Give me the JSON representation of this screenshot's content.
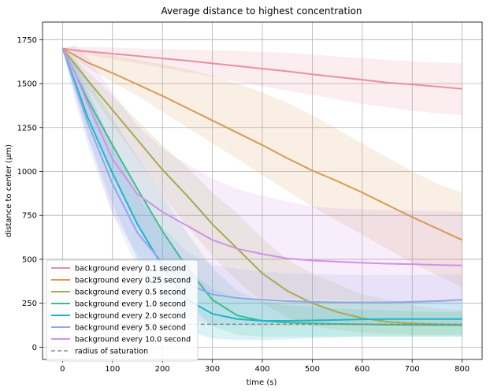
{
  "chart_data": {
    "type": "line",
    "title": "Average distance to highest concentration",
    "xlabel": "time (s)",
    "ylabel": "distance to center (μm)",
    "xlim": [
      -40,
      840
    ],
    "ylim": [
      -70,
      1850
    ],
    "x_ticks": [
      0,
      100,
      200,
      300,
      400,
      500,
      600,
      700,
      800
    ],
    "y_ticks": [
      0,
      250,
      500,
      750,
      1000,
      1250,
      1500,
      1750
    ],
    "grid": true,
    "legend_position": "lower-left",
    "x": [
      0,
      25,
      50,
      100,
      150,
      200,
      250,
      300,
      350,
      400,
      450,
      500,
      550,
      600,
      650,
      700,
      750,
      800
    ],
    "series": [
      {
        "name": "background every 0.1 second",
        "color": "#e88fa4",
        "values": [
          1700,
          1690,
          1683,
          1670,
          1657,
          1643,
          1630,
          1615,
          1600,
          1585,
          1570,
          1553,
          1537,
          1522,
          1505,
          1495,
          1483,
          1470
        ],
        "lower": [
          1700,
          1680,
          1665,
          1640,
          1615,
          1590,
          1565,
          1540,
          1510,
          1485,
          1460,
          1435,
          1410,
          1385,
          1365,
          1345,
          1330,
          1320
        ],
        "upper": [
          1700,
          1710,
          1710,
          1705,
          1700,
          1697,
          1693,
          1690,
          1685,
          1680,
          1675,
          1665,
          1655,
          1645,
          1635,
          1625,
          1620,
          1615
        ]
      },
      {
        "name": "background every 0.25 second",
        "color": "#d79a55",
        "values": [
          1700,
          1660,
          1620,
          1560,
          1495,
          1430,
          1360,
          1290,
          1220,
          1150,
          1075,
          1005,
          945,
          880,
          810,
          740,
          675,
          610
        ],
        "lower": [
          1700,
          1640,
          1590,
          1510,
          1430,
          1340,
          1250,
          1160,
          1070,
          980,
          890,
          800,
          720,
          640,
          560,
          480,
          410,
          340
        ],
        "upper": [
          1700,
          1690,
          1680,
          1660,
          1635,
          1610,
          1580,
          1545,
          1500,
          1450,
          1390,
          1320,
          1240,
          1160,
          1080,
          1000,
          930,
          880
        ]
      },
      {
        "name": "background every 0.5 second",
        "color": "#a2ac4f",
        "values": [
          1700,
          1610,
          1520,
          1350,
          1180,
          1010,
          860,
          700,
          560,
          420,
          320,
          250,
          200,
          165,
          145,
          135,
          130,
          128
        ],
        "lower": [
          1700,
          1580,
          1470,
          1270,
          1070,
          860,
          690,
          520,
          380,
          250,
          170,
          120,
          100,
          85,
          75,
          70,
          70,
          70
        ],
        "upper": [
          1700,
          1640,
          1570,
          1430,
          1290,
          1150,
          1020,
          880,
          760,
          620,
          500,
          420,
          360,
          300,
          270,
          240,
          220,
          210
        ]
      },
      {
        "name": "background every 1.0 second",
        "color": "#3ebe8d",
        "values": [
          1700,
          1560,
          1410,
          1150,
          900,
          660,
          450,
          270,
          180,
          150,
          140,
          135,
          132,
          130,
          128,
          127,
          126,
          125
        ],
        "lower": [
          1700,
          1500,
          1320,
          1000,
          710,
          450,
          250,
          120,
          70,
          60,
          60,
          60,
          60,
          60,
          60,
          60,
          60,
          60
        ],
        "upper": [
          1700,
          1640,
          1530,
          1300,
          1080,
          860,
          650,
          450,
          320,
          260,
          240,
          230,
          220,
          215,
          210,
          205,
          200,
          200
        ]
      },
      {
        "name": "background every 2.0 second",
        "color": "#1cb6cc",
        "values": [
          1700,
          1510,
          1310,
          990,
          700,
          460,
          270,
          190,
          160,
          150,
          150,
          152,
          155,
          158,
          160,
          160,
          160,
          160
        ],
        "lower": [
          1700,
          1440,
          1200,
          820,
          500,
          250,
          90,
          50,
          40,
          40,
          45,
          50,
          55,
          60,
          60,
          60,
          60,
          60
        ],
        "upper": [
          1700,
          1600,
          1450,
          1150,
          880,
          650,
          450,
          330,
          280,
          260,
          255,
          255,
          255,
          258,
          260,
          260,
          260,
          260
        ]
      },
      {
        "name": "background every 5.0 second",
        "color": "#8fa8ea",
        "values": [
          1700,
          1490,
          1280,
          930,
          650,
          480,
          360,
          300,
          280,
          270,
          262,
          258,
          255,
          255,
          255,
          258,
          262,
          270
        ],
        "lower": [
          1700,
          1400,
          1150,
          760,
          450,
          260,
          160,
          130,
          125,
          125,
          125,
          125,
          125,
          125,
          125,
          125,
          125,
          125
        ],
        "upper": [
          1700,
          1620,
          1470,
          1150,
          860,
          680,
          540,
          470,
          445,
          430,
          420,
          415,
          412,
          410,
          410,
          410,
          412,
          415
        ]
      },
      {
        "name": "background every 10.0 second",
        "color": "#cf92e8",
        "values": [
          1700,
          1560,
          1390,
          1070,
          870,
          770,
          690,
          610,
          560,
          530,
          505,
          493,
          487,
          480,
          475,
          472,
          468,
          465
        ],
        "lower": [
          1700,
          1450,
          1200,
          760,
          530,
          420,
          350,
          310,
          290,
          280,
          275,
          270,
          268,
          265,
          262,
          260,
          258,
          255
        ],
        "upper": [
          1700,
          1720,
          1650,
          1450,
          1260,
          1130,
          1040,
          960,
          900,
          860,
          830,
          800,
          790,
          785,
          780,
          778,
          775,
          770
        ]
      },
      {
        "name": "radius of saturation",
        "color": "#888888",
        "dashed": true,
        "values": [
          130,
          130,
          130,
          130,
          130,
          130,
          130,
          130,
          130,
          130,
          130,
          130,
          130,
          130,
          130,
          130,
          130,
          130
        ],
        "dashed_from_x": 100
      }
    ]
  }
}
